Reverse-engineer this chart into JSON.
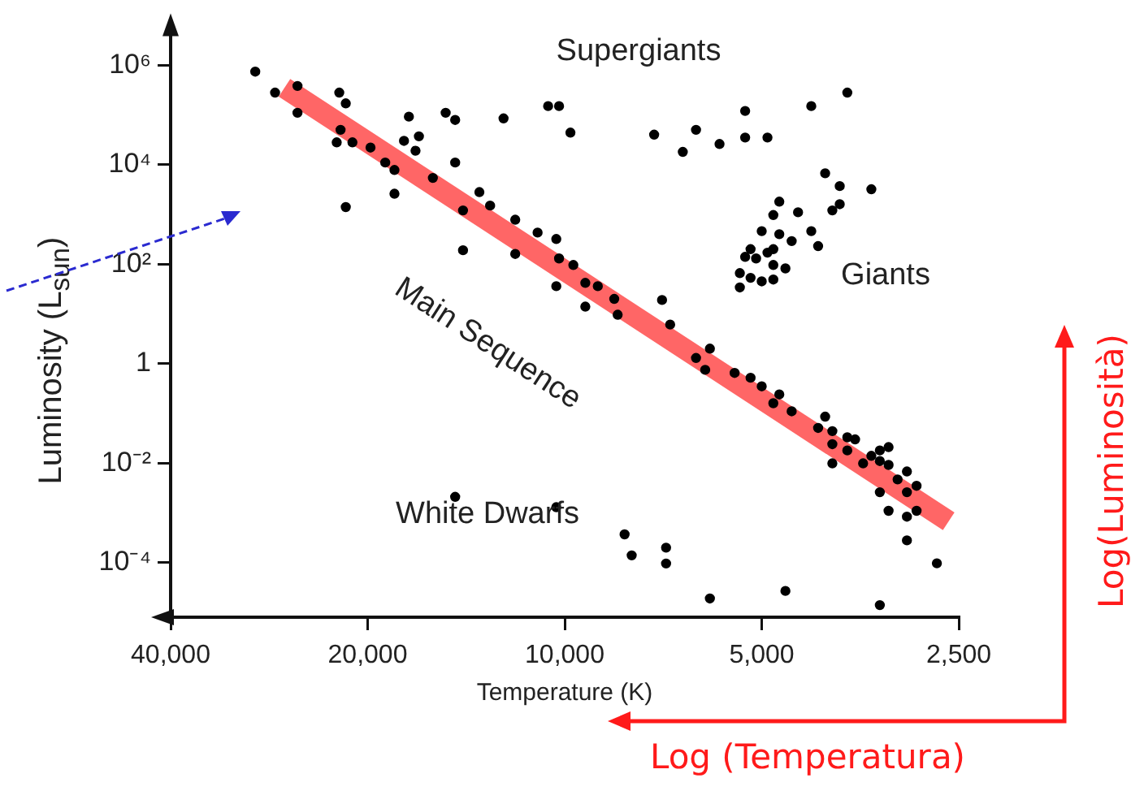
{
  "chart_data": {
    "type": "scatter",
    "xlabel": "Temperature (K)",
    "ylabel": "Luminosity (L$_{sun}$)",
    "log": "xy",
    "grid": false,
    "legend": false,
    "xlim": [
      40000,
      2500
    ],
    "ylim": [
      8e-06,
      7000000.0
    ],
    "xticks": [
      {
        "value": 40000,
        "label": "40,000"
      },
      {
        "value": 20000,
        "label": "20,000"
      },
      {
        "value": 10000,
        "label": "10,000"
      },
      {
        "value": 5000,
        "label": "5,000"
      },
      {
        "value": 2500,
        "label": "2,500"
      }
    ],
    "yticks": [
      {
        "value": 0.0001,
        "label": "10⁻⁴"
      },
      {
        "value": 0.01,
        "label": "10⁻²"
      },
      1,
      {
        "value": 100,
        "label": "10²"
      },
      {
        "value": 10000.0,
        "label": "10⁴"
      },
      {
        "value": 1000000.0,
        "label": "10⁶"
      }
    ],
    "series": [
      {
        "type": "line",
        "marker": "none",
        "color": "#ff0000",
        "x": [
          26800,
          2590
        ],
        "values": [
          350000.0,
          0.00068
        ]
      },
      {
        "marker": "circle",
        "color": "#000000",
        "x": [
          29700,
          27700,
          25600,
          25600,
          22100,
          21600,
          22300,
          21100,
          22000,
          19800,
          18800,
          18200,
          18200,
          17300,
          17600,
          16700,
          16900,
          15200,
          14700,
          12400,
          14700,
          15900,
          21600,
          13500,
          13000,
          14300,
          14300,
          11900,
          11000,
          11900,
          10300,
          10300,
          10600,
          10200,
          9800,
          7300,
          6300,
          6600,
          5800,
          5300,
          5300,
          4900,
          4200,
          3700,
          4000,
          3800,
          3400,
          3800,
          3900,
          4700,
          4800,
          4400,
          4200,
          4100,
          5000,
          4700,
          4500,
          4800,
          5200,
          4900,
          5100,
          5300,
          4800,
          4600,
          5400,
          5200,
          5000,
          4800,
          5400,
          10200,
          9700,
          9300,
          8900,
          9300,
          8400,
          8300,
          7100,
          6900,
          6000,
          6300,
          6100,
          5500,
          5200,
          5000,
          4700,
          4800,
          4500,
          4000,
          4100,
          3900,
          3700,
          3600,
          3900,
          3700,
          3400,
          3300,
          3200,
          3900,
          3500,
          3300,
          3200,
          3000,
          3100,
          2900,
          3000,
          3300,
          3200,
          3000,
          2900,
          3000,
          2700,
          14700,
          10300,
          8100,
          7900,
          7000,
          7000,
          6000,
          4600,
          3300
        ],
        "values": [
          740000.0,
          280000.0,
          380000.0,
          110000.0,
          280000.0,
          170000.0,
          28000.0,
          28000.0,
          50000.0,
          22000.0,
          11000.0,
          7800.0,
          2600.0,
          92000.0,
          30000.0,
          37000.0,
          19000.0,
          110000.0,
          79000.0,
          85000.0,
          11000.0,
          5400.0,
          1400.0,
          2800.0,
          1500.0,
          1200.0,
          190,
          780,
          430,
          160,
          320,
          36,
          150000.0,
          150000.0,
          44000.0,
          40000.0,
          50000.0,
          18000.0,
          26000.0,
          120000.0,
          35000.0,
          35000.0,
          150000.0,
          280000.0,
          6700.0,
          3700.0,
          3200.0,
          1600.0,
          1200.0,
          1800.0,
          970,
          1100.0,
          460,
          230,
          460,
          400,
          290,
          200,
          200,
          170,
          130,
          140,
          96,
          82,
          66,
          53,
          45,
          49,
          34,
          130,
          96,
          42,
          36,
          14,
          20,
          9.6,
          19,
          6.1,
          2.0,
          1.3,
          0.75,
          0.65,
          0.52,
          0.35,
          0.24,
          0.16,
          0.11,
          0.086,
          0.051,
          0.044,
          0.033,
          0.03,
          0.024,
          0.018,
          0.014,
          0.018,
          0.021,
          0.0099,
          0.0099,
          0.011,
          0.0092,
          0.0068,
          0.0047,
          0.0035,
          0.0026,
          0.0026,
          0.0011,
          0.00084,
          0.0011,
          0.00028,
          9.7e-05,
          0.0021,
          0.0013,
          0.00037,
          0.00014,
          0.0002,
          9.6e-05,
          1.9e-05,
          2.7e-05,
          1.4e-05
        ]
      }
    ],
    "annotations": [
      "Supergiants",
      "Giants",
      "Main Sequence",
      "White Dwarfs",
      "Log(Luminosità)",
      "Log (Temperatura)"
    ]
  }
}
